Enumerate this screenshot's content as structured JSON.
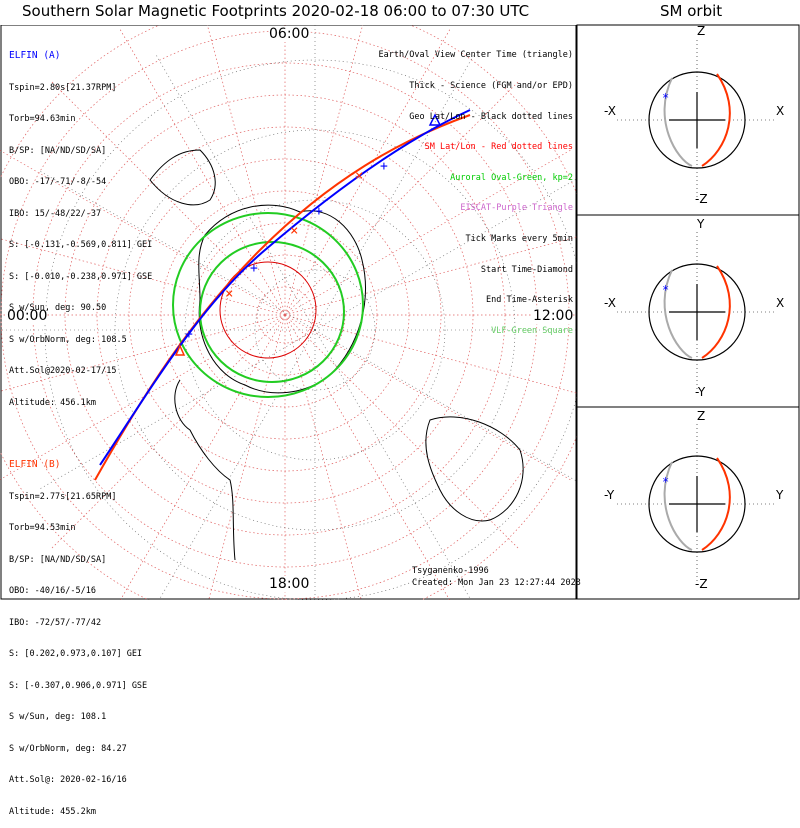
{
  "title": "Southern Solar Magnetic Footprints 2020-02-18 06:00 to 07:30 UTC",
  "sm_orbit_title": "SM orbit",
  "mlt_labels": {
    "top": "06:00",
    "left": "00:00",
    "right": "12:00",
    "bottom": "18:00"
  },
  "elfin_a": {
    "name": "ELFIN (A)",
    "color": "#0000ff",
    "lines": [
      "Tspin=2.80s[21.37RPM]",
      "Torb=94.63min",
      "B/SP: [NA/ND/SD/SA]",
      "OBO: -17/-71/-8/-54",
      "IBO: 15/-48/22/-37",
      "S: [-0.131,-0.569,0.811] GEI",
      "S: [-0.010,-0.238,0.971] GSE",
      "S w/Sun, deg: 90.50",
      "S w/OrbNorm, deg: 108.5",
      "Att.Sol@2020-02-17/15",
      "Altitude: 456.1km"
    ]
  },
  "elfin_b": {
    "name": "ELFIN (B)",
    "color": "#ff3300",
    "lines": [
      "Tspin=2.77s[21.65RPM]",
      "Torb=94.53min",
      "B/SP: [NA/ND/SD/SA]",
      "OBO: -40/16/-5/16",
      "IBO: -72/57/-77/42",
      "S: [0.202,0.973,0.107] GEI",
      "S: [-0.307,0.906,0.971] GSE",
      "S w/Sun, deg: 108.1",
      "S w/OrbNorm, deg: 84.27",
      "Att.Sol@: 2020-02-16/16",
      "Altitude: 455.2km"
    ]
  },
  "legend": [
    {
      "text": "Earth/Oval View Center Time (triangle)",
      "color": "#000000"
    },
    {
      "text": "Thick - Science (FGM and/or EPD)",
      "color": "#000000"
    },
    {
      "text": "Geo Lat/Lon - Black dotted lines",
      "color": "#000000"
    },
    {
      "text": "SM Lat/Lon - Red dotted lines",
      "color": "#ff0000"
    },
    {
      "text": "Auroral Oval-Green, kp=2",
      "color": "#00cc00"
    },
    {
      "text": "EISCAT-Purple Triangle",
      "color": "#cc66cc"
    },
    {
      "text": "Tick Marks every 5min",
      "color": "#000000"
    },
    {
      "text": "Start Time-Diamond",
      "color": "#000000"
    },
    {
      "text": "End Time-Asterisk",
      "color": "#000000"
    },
    {
      "text": "VLF-Green Square",
      "color": "#66cc66"
    }
  ],
  "footer": {
    "credit": "Tsyganenko-1996",
    "created": "Created: Mon Jan 23 12:27:44 2023"
  },
  "sm_panels": [
    {
      "name": "xz",
      "top": "Z",
      "bottom": "-Z",
      "left": "-X",
      "right": "X"
    },
    {
      "name": "xy",
      "top": "Y",
      "bottom": "-Y",
      "left": "-X",
      "right": "X"
    },
    {
      "name": "yz",
      "top": "Z",
      "bottom": "-Z",
      "left": "-Y",
      "right": "Y"
    }
  ]
}
